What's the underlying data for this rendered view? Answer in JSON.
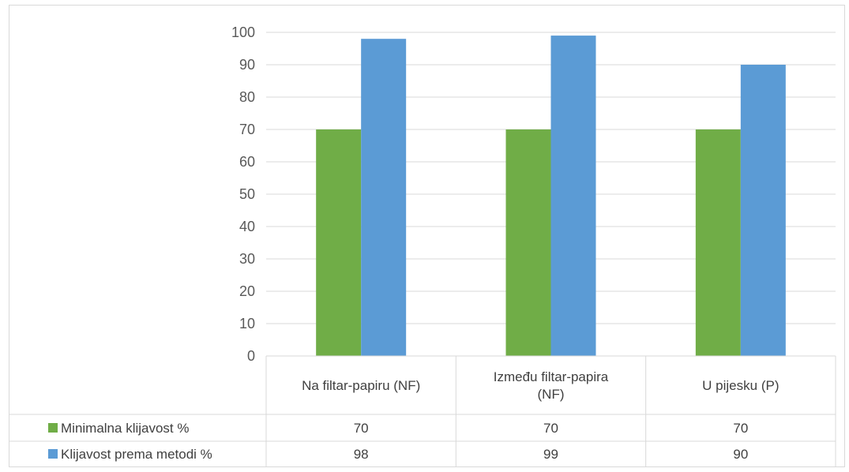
{
  "chart_data": {
    "type": "bar",
    "title": "",
    "xlabel": "",
    "ylabel": "",
    "categories": [
      [
        "Na filtar-papiru (NF)"
      ],
      [
        "Između filtar-papira",
        "(NF)"
      ],
      [
        "U pijesku (P)"
      ]
    ],
    "series": [
      {
        "name": "Minimalna klijavost %",
        "color": "#70ad47",
        "values": [
          70,
          70,
          70
        ]
      },
      {
        "name": "Klijavost prema metodi %",
        "color": "#5b9bd5",
        "values": [
          98,
          99,
          90
        ]
      }
    ],
    "ylim": [
      0,
      100
    ],
    "yticks": [
      0,
      10,
      20,
      30,
      40,
      50,
      60,
      70,
      80,
      90,
      100
    ],
    "grid": true,
    "legend": "data-table-left",
    "data_table": true
  }
}
